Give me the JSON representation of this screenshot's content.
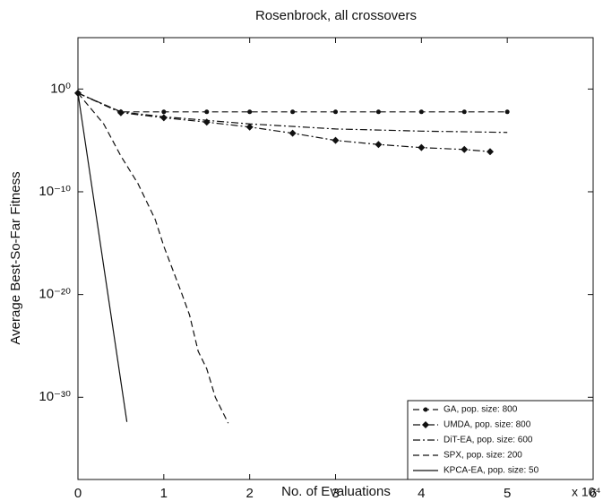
{
  "chart_data": {
    "type": "line",
    "title": "Rosenbrock, all crossovers",
    "x_label": "No. of Evaluations",
    "x_multiplier": "x 10⁴",
    "y_label": "Average Best-So-Far Fitness",
    "xlim": [
      0,
      6
    ],
    "xticks": [
      0,
      1,
      2,
      3,
      4,
      5,
      6
    ],
    "ylim": [
      1e-38,
      100000
    ],
    "log_y": true,
    "yticks": [
      {
        "value": 1,
        "label": "10⁰"
      },
      {
        "value": 1e-10,
        "label": "10⁻¹⁰"
      },
      {
        "value": 1e-20,
        "label": "10⁻²⁰"
      },
      {
        "value": 1e-30,
        "label": "10⁻³⁰"
      }
    ],
    "legend": "lower right",
    "series": [
      {
        "name": "GA, pop. size: 800",
        "color": "#111111",
        "style": "dashed",
        "marker": "dot",
        "x": [
          0,
          0.5,
          1,
          1.5,
          2,
          2.5,
          3,
          3.5,
          4,
          4.5,
          5
        ],
        "values": [
          0.4,
          0.006,
          0.006,
          0.006,
          0.006,
          0.006,
          0.006,
          0.006,
          0.006,
          0.006,
          0.006
        ]
      },
      {
        "name": "UMDA, pop. size: 800",
        "color": "#111111",
        "style": "dashdot",
        "marker": "diamond",
        "x": [
          0,
          0.5,
          1,
          1.5,
          2,
          2.5,
          3,
          3.5,
          4,
          4.5,
          4.8
        ],
        "values": [
          0.4,
          0.005,
          0.0016,
          0.0006,
          0.0002,
          5e-05,
          1e-05,
          4e-06,
          2e-06,
          1.3e-06,
          8e-07
        ]
      },
      {
        "name": "DiT-EA, pop. size: 600",
        "color": "#111111",
        "style": "dashdot",
        "marker": "none",
        "x": [
          0,
          0.5,
          1,
          2,
          3,
          4,
          5
        ],
        "values": [
          0.4,
          0.006,
          0.002,
          0.0004,
          0.00013,
          8e-05,
          6e-05
        ]
      },
      {
        "name": "SPX, pop. size: 200",
        "color": "#111111",
        "style": "dashed",
        "marker": "none",
        "x": [
          0,
          0.3,
          0.5,
          0.7,
          0.9,
          1.0,
          1.2,
          1.3,
          1.4,
          1.5,
          1.6,
          1.75
        ],
        "values": [
          0.4,
          0.0004,
          3e-07,
          6e-10,
          2e-13,
          5e-16,
          2e-20,
          1e-22,
          3e-26,
          6e-28,
          1e-30,
          3e-33
        ]
      },
      {
        "name": "KPCA-EA, pop. size: 50",
        "color": "#111111",
        "style": "solid",
        "marker": "none",
        "x": [
          0,
          0.57
        ],
        "values": [
          0.4,
          4e-33
        ]
      }
    ]
  }
}
